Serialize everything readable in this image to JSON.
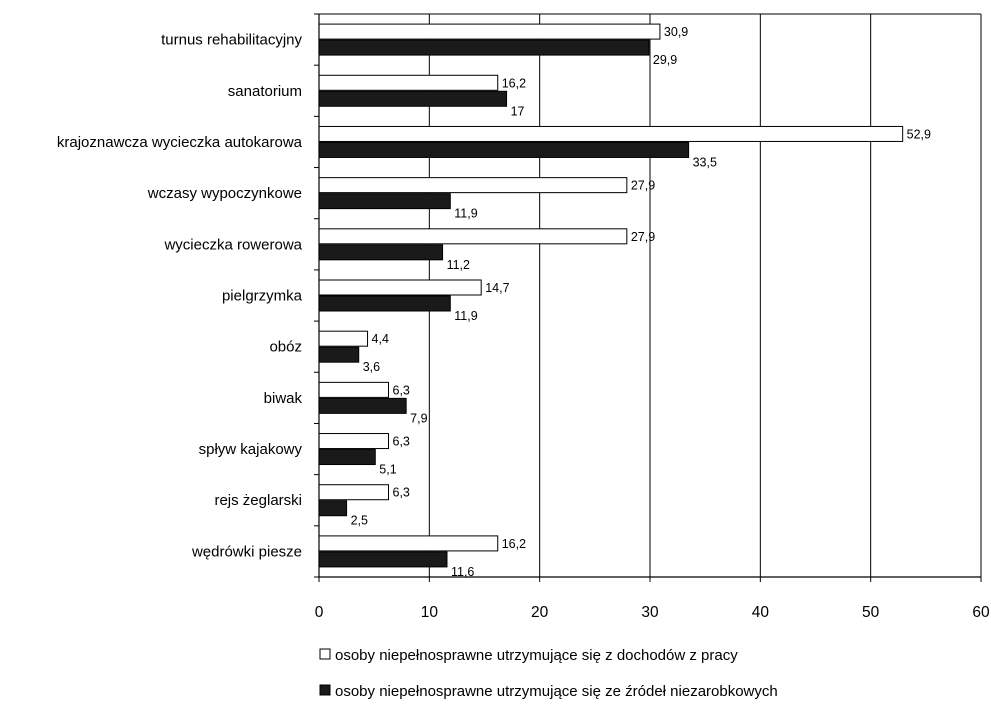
{
  "chart_data": {
    "type": "bar",
    "orientation": "horizontal",
    "categories": [
      "turnus rehabilitacyjny",
      "sanatorium",
      "krajoznawcza wycieczka autokarowa",
      "wczasy wypoczynkowe",
      "wycieczka rowerowa",
      "pielgrzymka",
      "obóz",
      "biwak",
      "spływ kajakowy",
      "rejs żeglarski",
      "wędrówki piesze"
    ],
    "series": [
      {
        "name": "osoby niepełnosprawne utrzymujące się z dochodów z pracy",
        "fill": "#ffffff",
        "values": [
          30.9,
          16.2,
          52.9,
          27.9,
          27.9,
          14.7,
          4.4,
          6.3,
          6.3,
          6.3,
          16.2
        ],
        "labels": [
          "30,9",
          "16,2",
          "52,9",
          "27,9",
          "27,9",
          "14,7",
          "4,4",
          "6,3",
          "6,3",
          "6,3",
          "16,2"
        ]
      },
      {
        "name": "osoby niepełnosprawne utrzymujące się ze źródeł niezarobkowych",
        "fill": "#1a1a1a",
        "values": [
          29.9,
          17,
          33.5,
          11.9,
          11.2,
          11.9,
          3.6,
          7.9,
          5.1,
          2.5,
          11.6
        ],
        "labels": [
          "29,9",
          "17",
          "33,5",
          "11,9",
          "11,2",
          "11,9",
          "3,6",
          "7,9",
          "5,1",
          "2,5",
          "11,6"
        ]
      }
    ],
    "xlim": [
      0,
      60
    ],
    "xticks": [
      0,
      10,
      20,
      30,
      40,
      50,
      60
    ],
    "xtick_labels": [
      "0",
      "10",
      "20",
      "30",
      "40",
      "50",
      "60"
    ],
    "grid": "vertical",
    "legend_position": "bottom",
    "title": "",
    "xlabel": "",
    "ylabel": ""
  }
}
